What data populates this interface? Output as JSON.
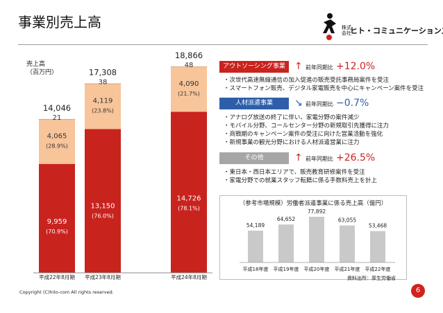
{
  "page_title": "事業別売上高",
  "logo": {
    "small_text": "株式\n会社",
    "company_name": "ヒト・コミュニケーションズ",
    "figure_label": "ito.com"
  },
  "colors": {
    "red": "#c9231e",
    "peach": "#f8c49a",
    "gray_bar": "#c9c9c9",
    "header_red": "#c9231e",
    "header_blue": "#2e5eaa",
    "header_gray": "#a6a6a6"
  },
  "main_axis_label": "売上高\n（百万円）",
  "chart_data": [
    {
      "type": "bar",
      "stacked": true,
      "categories": [
        "平成22年8月期",
        "平成23年8月期",
        "平成24年8月期"
      ],
      "totals": [
        "14,046",
        "17,308",
        "18,866"
      ],
      "series": [
        {
          "name": "アウトソーシング事業",
          "values": [
            9959,
            13150,
            14726
          ],
          "labels": [
            "9,959",
            "13,150",
            "14,726"
          ],
          "pct": [
            "(70.9%)",
            "(76.0%)",
            "(78.1%)"
          ]
        },
        {
          "name": "人材派遣事業",
          "values": [
            4065,
            4119,
            4090
          ],
          "labels": [
            "4,065",
            "4,119",
            "4,090"
          ],
          "pct": [
            "(28.9%)",
            "(23.8%)",
            "(21.7%)"
          ]
        },
        {
          "name": "その他",
          "values": [
            21,
            38,
            48
          ],
          "labels": [
            "21",
            "38",
            "48"
          ]
        }
      ]
    },
    {
      "type": "bar",
      "title": "（参考市場規模）労働者派遣事業に係る売上高（億円）",
      "categories": [
        "平成18年度",
        "平成19年度",
        "平成20年度",
        "平成21年度",
        "平成22年度"
      ],
      "values": [
        54189,
        64652,
        77892,
        63055,
        53468
      ],
      "labels": [
        "54,189",
        "64,652",
        "77,892",
        "63,055",
        "53,468"
      ],
      "source": "資料出所：厚生労働省"
    }
  ],
  "segments": [
    {
      "name": "アウトソーシング事業",
      "arrow": "↑",
      "yoy_label": "前年同期比",
      "yoy": "+12.0%",
      "desc": [
        "・次世代高速無線通信の加入促進の販売受託事務局案件を受注",
        "・スマートフォン販売、デジタル家電販売を中心にキャンペーン案件を受注"
      ]
    },
    {
      "name": "人材派遣事業",
      "arrow": "↘",
      "yoy_label": "前年同期比",
      "yoy": "−0.7%",
      "desc": [
        "・アナログ放送の終了に伴い、家電分野の案件減少",
        "・モバイル分野、コールセンター分野の新規取引先獲得に注力",
        "・商戦期のキャンペーン案件の受注に向けた営業活動を強化",
        "・新規事業の観光分野における人材派遣営業に注力"
      ]
    },
    {
      "name": "その他",
      "arrow": "↑",
      "yoy_label": "前年同期比",
      "yoy": "+26.5%",
      "desc": [
        "・東日本・西日本エリアで、販売教育研修案件を受注",
        "・家電分野での就業スタッフ転籍に係る手数料売上を計上"
      ]
    }
  ],
  "copyright": "Copyright (C)hito-com All rights reserved.",
  "page_number": "6"
}
